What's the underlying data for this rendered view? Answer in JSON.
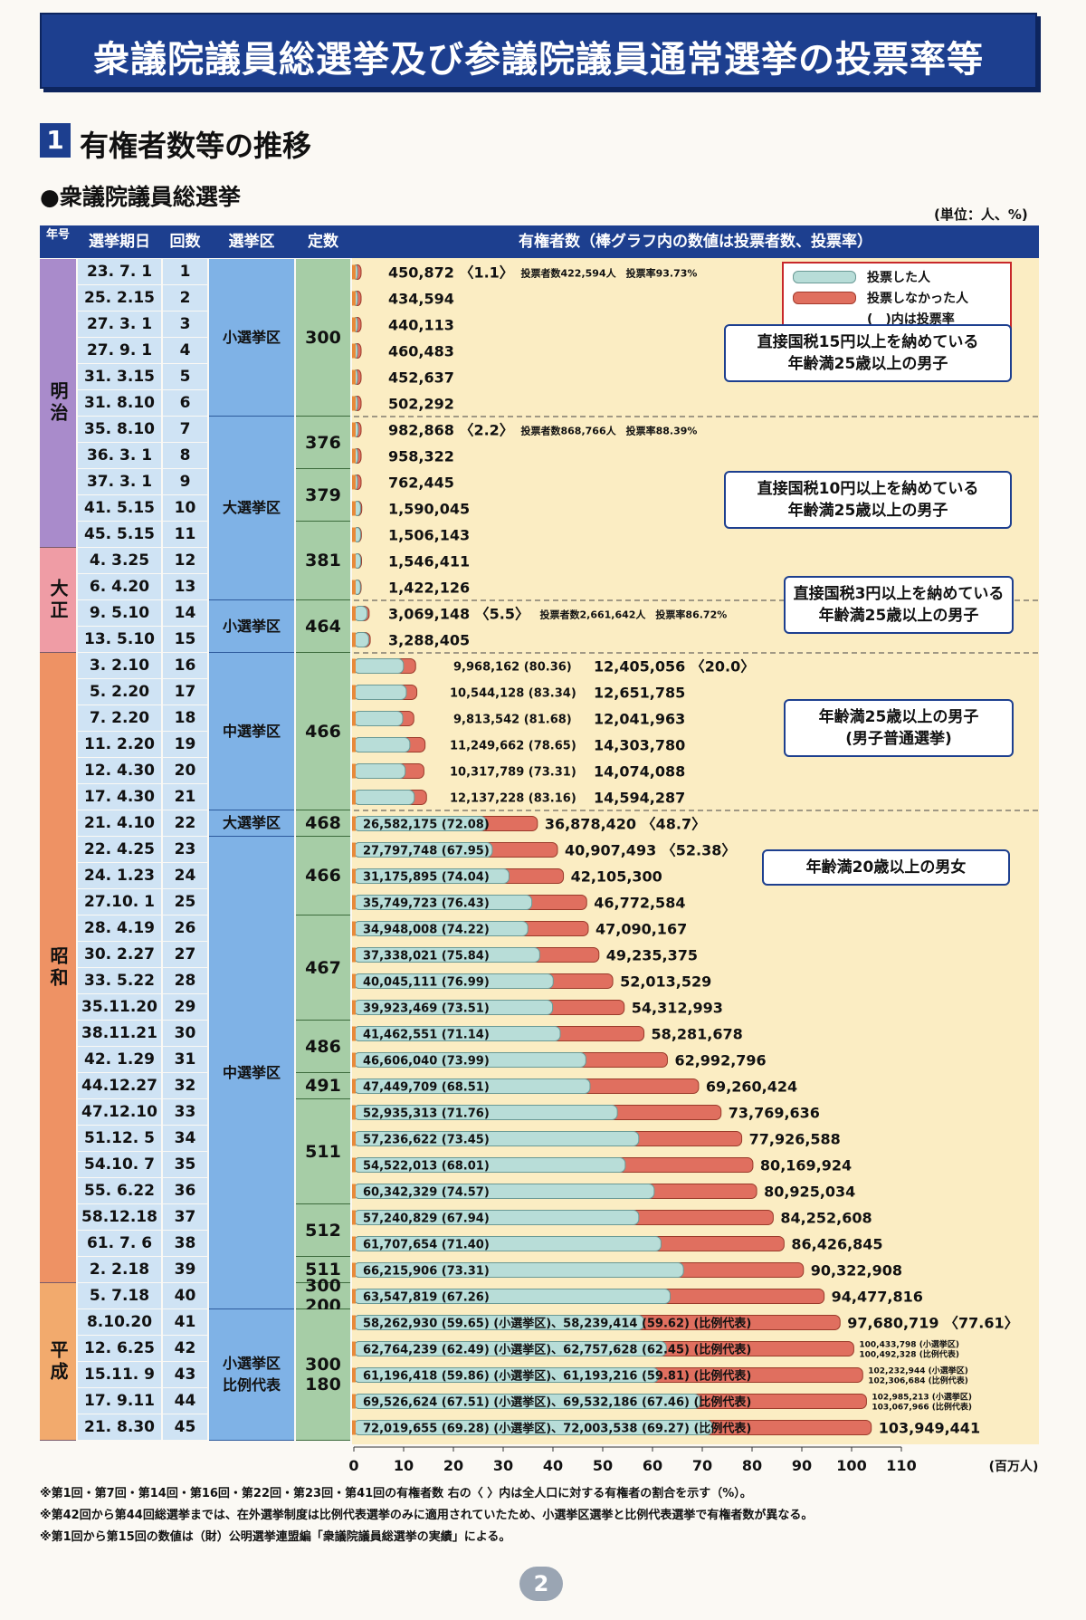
{
  "page": {
    "title": "衆議院議員総選挙及び参議院議員通常選挙の投票率等",
    "section_num": "1",
    "section_title": "有権者数等の推移",
    "subtitle": "●衆議院議員総選挙",
    "unit": "(単位：人、%)",
    "page_number": "2"
  },
  "headers": {
    "era": "年号",
    "date": "選挙期日",
    "round": "回数",
    "system": "選挙区",
    "seats": "定数",
    "chart": "有権者数（棒グラフ内の数値は投票者数、投票率）"
  },
  "eras": [
    {
      "label": "明治",
      "color": "#a98bcb",
      "first": 0,
      "last": 10
    },
    {
      "label": "大正",
      "color": "#ef9ca5",
      "first": 11,
      "last": 14
    },
    {
      "label": "昭和",
      "color": "#ee9264",
      "first": 15,
      "last": 38
    },
    {
      "label": "平成",
      "color": "#f2aa6d",
      "first": 39,
      "last": 44
    }
  ],
  "systems": [
    {
      "label": "小選挙区",
      "first": 0,
      "last": 5
    },
    {
      "label": "大選挙区",
      "first": 6,
      "last": 12
    },
    {
      "label": "小選挙区",
      "first": 13,
      "last": 14
    },
    {
      "label": "中選挙区",
      "first": 15,
      "last": 20
    },
    {
      "label": "大選挙区",
      "first": 21,
      "last": 21
    },
    {
      "label": "中選挙区",
      "first": 22,
      "last": 39
    },
    {
      "label": "小選挙区\n比例代表",
      "first": 40,
      "last": 44
    }
  ],
  "capacities": [
    {
      "label": "300",
      "first": 0,
      "last": 5
    },
    {
      "label": "376",
      "first": 6,
      "last": 7
    },
    {
      "label": "379",
      "first": 8,
      "last": 9
    },
    {
      "label": "381",
      "first": 10,
      "last": 12
    },
    {
      "label": "464",
      "first": 13,
      "last": 14
    },
    {
      "label": "466",
      "first": 15,
      "last": 20
    },
    {
      "label": "468",
      "first": 21,
      "last": 21
    },
    {
      "label": "466",
      "first": 22,
      "last": 24
    },
    {
      "label": "467",
      "first": 25,
      "last": 28
    },
    {
      "label": "486",
      "first": 29,
      "last": 30
    },
    {
      "label": "491",
      "first": 31,
      "last": 31
    },
    {
      "label": "511",
      "first": 32,
      "last": 35
    },
    {
      "label": "512",
      "first": 36,
      "last": 37
    },
    {
      "label": "511",
      "first": 38,
      "last": 38
    },
    {
      "label": "300\n200",
      "first": 39,
      "last": 39
    },
    {
      "label": "300\n180",
      "first": 40,
      "last": 44
    }
  ],
  "annotations": [
    {
      "lines": [
        "直接国税15円以上を納めている",
        "年齢満25歳以上の男子"
      ],
      "row": 3.5
    },
    {
      "lines": [
        "直接国税10円以上を納めている",
        "年齢満25歳以上の男子"
      ],
      "row": 9.1
    },
    {
      "lines": [
        "直接国税3円以上を納めている",
        "年齢満25歳以上の男子"
      ],
      "row": 13.1
    },
    {
      "lines": [
        "年齢満25歳以上の男子",
        "(男子普通選挙)"
      ],
      "row": 17.8
    },
    {
      "lines": [
        "年齢満20歳以上の男女"
      ],
      "row": 23.1
    }
  ],
  "legend": {
    "voted": "投票した人",
    "not_voted": "投票しなかった人",
    "ratio": "(　)内は投票率"
  },
  "footnotes": [
    "※第1回・第7回・第14回・第16回・第22回・第23回・第41回の有権者数 右の〈 〉内は全人口に対する有権者の割合を示す（%）。",
    "※第42回から第44回総選挙までは、在外選挙制度は比例代表選挙のみに適用されていたため、小選挙区選挙と比例代表選挙で有権者数が異なる。",
    "※第1回から第15回の数値は（財）公明選挙連盟編「衆議院議員総選挙の実績」による。"
  ],
  "chart_data": {
    "type": "bar",
    "orientation": "horizontal",
    "stacked": true,
    "xlabel": "(百万人)",
    "xlim": [
      0,
      110
    ],
    "xticks": [
      0,
      10,
      20,
      30,
      40,
      50,
      60,
      70,
      80,
      90,
      100,
      110
    ],
    "series": [
      {
        "name": "投票した人",
        "color": "#b8ddd8"
      },
      {
        "name": "投票しなかった人",
        "color": "#e06f5f"
      }
    ],
    "rows": [
      {
        "date": "23. 7. 1",
        "round": "1",
        "electorate": 450872,
        "electorate_label": "450,872",
        "ratio": "〈1.1〉",
        "voters": 422594,
        "turnout": 93.73,
        "note": "投票者数422,594人　投票率93.73%"
      },
      {
        "date": "25. 2.15",
        "round": "2",
        "electorate": 434594,
        "electorate_label": "434,594",
        "voters": 364000
      },
      {
        "date": "27. 3. 1",
        "round": "3",
        "electorate": 440113,
        "electorate_label": "440,113",
        "voters": 389000
      },
      {
        "date": "27. 9. 1",
        "round": "4",
        "electorate": 460483,
        "electorate_label": "460,483",
        "voters": 413000
      },
      {
        "date": "31. 3.15",
        "round": "5",
        "electorate": 452637,
        "electorate_label": "452,637",
        "voters": 399000
      },
      {
        "date": "31. 8.10",
        "round": "6",
        "electorate": 502292,
        "electorate_label": "502,292",
        "voters": 440000
      },
      {
        "date": "35. 8.10",
        "round": "7",
        "electorate": 982868,
        "electorate_label": "982,868",
        "ratio": "〈2.2〉",
        "voters": 868766,
        "turnout": 88.39,
        "note": "投票者数868,766人　投票率88.39%"
      },
      {
        "date": "36. 3. 1",
        "round": "8",
        "electorate": 958322,
        "electorate_label": "958,322",
        "voters": 800000
      },
      {
        "date": "37. 3. 1",
        "round": "9",
        "electorate": 762445,
        "electorate_label": "762,445",
        "voters": 680000
      },
      {
        "date": "41. 5.15",
        "round": "10",
        "electorate": 1590045,
        "electorate_label": "1,590,045",
        "voters": 1350000
      },
      {
        "date": "45. 5.15",
        "round": "11",
        "electorate": 1506143,
        "electorate_label": "1,506,143",
        "voters": 1350000
      },
      {
        "date": "4. 3.25",
        "round": "12",
        "electorate": 1546411,
        "electorate_label": "1,546,411",
        "voters": 1380000
      },
      {
        "date": "6. 4.20",
        "round": "13",
        "electorate": 1422126,
        "electorate_label": "1,422,126",
        "voters": 1320000
      },
      {
        "date": "9. 5.10",
        "round": "14",
        "electorate": 3069148,
        "electorate_label": "3,069,148",
        "ratio": "〈5.5〉",
        "voters": 2661642,
        "turnout": 86.72,
        "note": "投票者数2,661,642人　投票率86.72%"
      },
      {
        "date": "13. 5.10",
        "round": "15",
        "electorate": 3288405,
        "electorate_label": "3,288,405",
        "voters": 2980000
      },
      {
        "date": "3. 2.10",
        "round": "16",
        "electorate": 12405056,
        "electorate_label": "12,405,056",
        "ratio": "〈20.0〉",
        "voters": 9968162,
        "voters_label": "9,968,162",
        "turnout_label": "(80.36)"
      },
      {
        "date": "5. 2.20",
        "round": "17",
        "electorate": 12651785,
        "electorate_label": "12,651,785",
        "voters": 10544128,
        "voters_label": "10,544,128",
        "turnout_label": "(83.34)"
      },
      {
        "date": "7. 2.20",
        "round": "18",
        "electorate": 12041963,
        "electorate_label": "12,041,963",
        "voters": 9813542,
        "voters_label": "9,813,542",
        "turnout_label": "(81.68)"
      },
      {
        "date": "11. 2.20",
        "round": "19",
        "electorate": 14303780,
        "electorate_label": "14,303,780",
        "voters": 11249662,
        "voters_label": "11,249,662",
        "turnout_label": "(78.65)"
      },
      {
        "date": "12. 4.30",
        "round": "20",
        "electorate": 14074088,
        "electorate_label": "14,074,088",
        "voters": 10317789,
        "voters_label": "10,317,789",
        "turnout_label": "(73.31)"
      },
      {
        "date": "17. 4.30",
        "round": "21",
        "electorate": 14594287,
        "electorate_label": "14,594,287",
        "voters": 12137228,
        "voters_label": "12,137,228",
        "turnout_label": "(83.16)"
      },
      {
        "date": "21. 4.10",
        "round": "22",
        "electorate": 36878420,
        "electorate_label": "36,878,420",
        "ratio": "〈48.7〉",
        "voters": 26582175,
        "voters_label": "26,582,175",
        "turnout_label": "(72.08)"
      },
      {
        "date": "22. 4.25",
        "round": "23",
        "electorate": 40907493,
        "electorate_label": "40,907,493",
        "ratio": "〈52.38〉",
        "voters": 27797748,
        "voters_label": "27,797,748",
        "turnout_label": "(67.95)"
      },
      {
        "date": "24. 1.23",
        "round": "24",
        "electorate": 42105300,
        "electorate_label": "42,105,300",
        "voters": 31175895,
        "voters_label": "31,175,895",
        "turnout_label": "(74.04)"
      },
      {
        "date": "27.10. 1",
        "round": "25",
        "electorate": 46772584,
        "electorate_label": "46,772,584",
        "voters": 35749723,
        "voters_label": "35,749,723",
        "turnout_label": "(76.43)"
      },
      {
        "date": "28. 4.19",
        "round": "26",
        "electorate": 47090167,
        "electorate_label": "47,090,167",
        "voters": 34948008,
        "voters_label": "34,948,008",
        "turnout_label": "(74.22)"
      },
      {
        "date": "30. 2.27",
        "round": "27",
        "electorate": 49235375,
        "electorate_label": "49,235,375",
        "voters": 37338021,
        "voters_label": "37,338,021",
        "turnout_label": "(75.84)"
      },
      {
        "date": "33. 5.22",
        "round": "28",
        "electorate": 52013529,
        "electorate_label": "52,013,529",
        "voters": 40045111,
        "voters_label": "40,045,111",
        "turnout_label": "(76.99)"
      },
      {
        "date": "35.11.20",
        "round": "29",
        "electorate": 54312993,
        "electorate_label": "54,312,993",
        "voters": 39923469,
        "voters_label": "39,923,469",
        "turnout_label": "(73.51)"
      },
      {
        "date": "38.11.21",
        "round": "30",
        "electorate": 58281678,
        "electorate_label": "58,281,678",
        "voters": 41462551,
        "voters_label": "41,462,551",
        "turnout_label": "(71.14)"
      },
      {
        "date": "42. 1.29",
        "round": "31",
        "electorate": 62992796,
        "electorate_label": "62,992,796",
        "voters": 46606040,
        "voters_label": "46,606,040",
        "turnout_label": "(73.99)"
      },
      {
        "date": "44.12.27",
        "round": "32",
        "electorate": 69260424,
        "electorate_label": "69,260,424",
        "voters": 47449709,
        "voters_label": "47,449,709",
        "turnout_label": "(68.51)"
      },
      {
        "date": "47.12.10",
        "round": "33",
        "electorate": 73769636,
        "electorate_label": "73,769,636",
        "voters": 52935313,
        "voters_label": "52,935,313",
        "turnout_label": "(71.76)"
      },
      {
        "date": "51.12. 5",
        "round": "34",
        "electorate": 77926588,
        "electorate_label": "77,926,588",
        "voters": 57236622,
        "voters_label": "57,236,622",
        "turnout_label": "(73.45)"
      },
      {
        "date": "54.10. 7",
        "round": "35",
        "electorate": 80169924,
        "electorate_label": "80,169,924",
        "voters": 54522013,
        "voters_label": "54,522,013",
        "turnout_label": "(68.01)"
      },
      {
        "date": "55. 6.22",
        "round": "36",
        "electorate": 80925034,
        "electorate_label": "80,925,034",
        "voters": 60342329,
        "voters_label": "60,342,329",
        "turnout_label": "(74.57)"
      },
      {
        "date": "58.12.18",
        "round": "37",
        "electorate": 84252608,
        "electorate_label": "84,252,608",
        "voters": 57240829,
        "voters_label": "57,240,829",
        "turnout_label": "(67.94)"
      },
      {
        "date": "61. 7. 6",
        "round": "38",
        "electorate": 86426845,
        "electorate_label": "86,426,845",
        "voters": 61707654,
        "voters_label": "61,707,654",
        "turnout_label": "(71.40)"
      },
      {
        "date": "2. 2.18",
        "round": "39",
        "electorate": 90322908,
        "electorate_label": "90,322,908",
        "voters": 66215906,
        "voters_label": "66,215,906",
        "turnout_label": "(73.31)"
      },
      {
        "date": "5. 7.18",
        "round": "40",
        "electorate": 94477816,
        "electorate_label": "94,477,816",
        "voters": 63547819,
        "voters_label": "63,547,819",
        "turnout_label": "(67.26)"
      },
      {
        "date": "8.10.20",
        "round": "41",
        "electorate": 97680719,
        "electorate_label": "97,680,719",
        "ratio": "〈77.61〉",
        "voters": 58262930,
        "voters_label": "58,262,930 (59.65) (小選挙区)、58,239,414 (59.62) (比例代表)"
      },
      {
        "date": "12. 6.25",
        "round": "42",
        "electorate": 100433798,
        "electorate_label": "100,433,798 (小選挙区)",
        "electorate_label2": "100,492,328 (比例代表)",
        "voters": 62764239,
        "voters_label": "62,764,239 (62.49) (小選挙区)、62,757,628 (62.45) (比例代表)"
      },
      {
        "date": "15.11. 9",
        "round": "43",
        "electorate": 102232944,
        "electorate_label": "102,232,944 (小選挙区)",
        "electorate_label2": "102,306,684 (比例代表)",
        "voters": 61196418,
        "voters_label": "61,196,418 (59.86) (小選挙区)、61,193,216 (59.81) (比例代表)"
      },
      {
        "date": "17. 9.11",
        "round": "44",
        "electorate": 102985213,
        "electorate_label": "102,985,213 (小選挙区)",
        "electorate_label2": "103,067,966 (比例代表)",
        "voters": 69526624,
        "voters_label": "69,526,624 (67.51) (小選挙区)、69,532,186 (67.46) (比例代表)"
      },
      {
        "date": "21. 8.30",
        "round": "45",
        "electorate": 103949441,
        "electorate_label": "103,949,441",
        "voters": 72019655,
        "voters_label": "72,019,655 (69.28) (小選挙区)、72,003,538 (69.27) (比例代表)"
      }
    ]
  }
}
